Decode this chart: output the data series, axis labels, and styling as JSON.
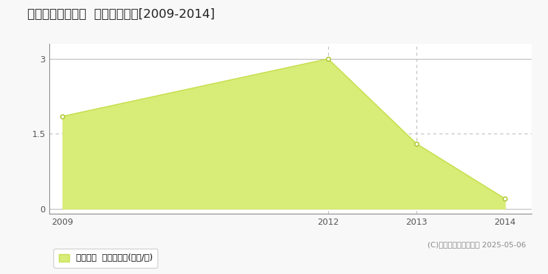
{
  "title": "香取郡多古町大門  土地価格推移[2009-2014]",
  "years": [
    2009,
    2012,
    2013,
    2014
  ],
  "values": [
    1.85,
    3.0,
    1.3,
    0.2
  ],
  "line_color": "#c8e050",
  "fill_color": "#d8ec78",
  "marker_color": "#ffffff",
  "marker_edge_color": "#b0c832",
  "yticks": [
    0,
    1.5,
    3
  ],
  "ylim": [
    -0.1,
    3.3
  ],
  "xlim": [
    2008.85,
    2014.3
  ],
  "legend_label": "土地価格  平均坪単価(万円/坪)",
  "copyright_text": "(C)土地価格ドットコム 2025-05-06",
  "background_color": "#f8f8f8",
  "plot_bg_color": "#ffffff",
  "grid_color_solid": "#bbbbbb",
  "grid_color_dash": "#bbbbbb",
  "vgrid_years": [
    2012,
    2013
  ],
  "title_fontsize": 13,
  "tick_fontsize": 9,
  "legend_fontsize": 9
}
